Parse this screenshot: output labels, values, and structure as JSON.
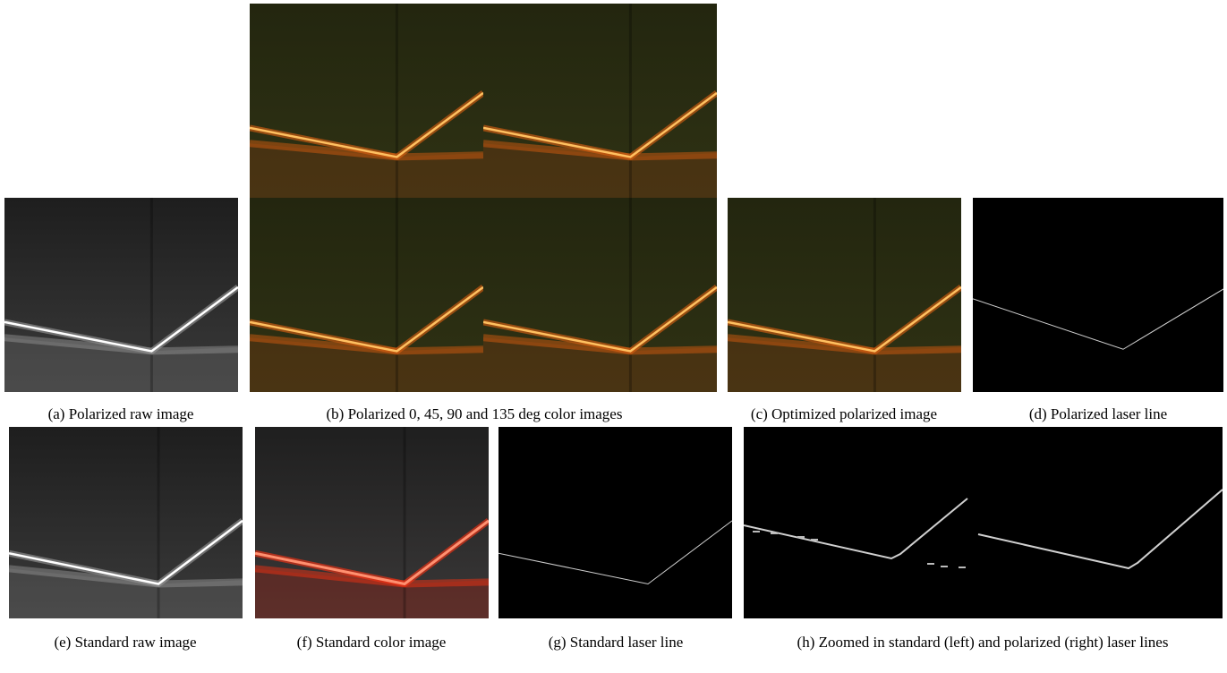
{
  "figure": {
    "panels": [
      {
        "caption": "(a) Polarized raw image"
      },
      {
        "caption": "(b) Polarized 0, 45, 90 and 135 deg color images"
      },
      {
        "caption": "(c) Optimized polarized image"
      },
      {
        "caption": "(d) Polarized laser line"
      },
      {
        "caption": "(e) Standard raw image"
      },
      {
        "caption": "(f) Standard color image"
      },
      {
        "caption": "(g) Standard laser line"
      },
      {
        "caption": "(h) Zoomed in standard (left) and polarized (right) laser lines"
      }
    ]
  }
}
